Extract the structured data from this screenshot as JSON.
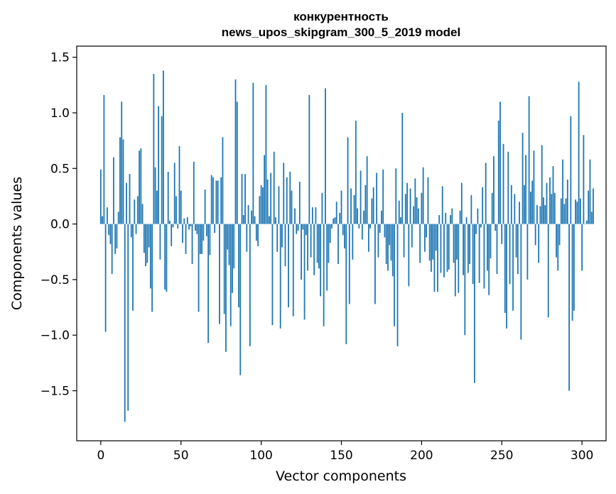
{
  "chart_data": {
    "type": "bar",
    "title_line1": "конкурентность",
    "title_line2": "news_upos_skipgram_300_5_2019 model",
    "xlabel": "Vector components",
    "ylabel": "Components values",
    "xlim": [
      -15,
      315
    ],
    "ylim": [
      -1.95,
      1.6
    ],
    "x_ticks": [
      0,
      50,
      100,
      150,
      200,
      250,
      300
    ],
    "x_tick_labels": [
      "0",
      "50",
      "100",
      "150",
      "200",
      "250",
      "300"
    ],
    "y_ticks": [
      1.5,
      1.0,
      0.5,
      0.0,
      -0.5,
      -1.0,
      -1.5
    ],
    "y_tick_labels": [
      "1.5",
      "1.0",
      "0.5",
      "0.0",
      "−0.5",
      "−1.0",
      "−1.5"
    ],
    "bar_color": "#1f77b4",
    "values": [
      0.49,
      0.07,
      1.16,
      -0.97,
      0.15,
      -0.1,
      -0.18,
      -0.45,
      0.6,
      -0.27,
      -0.22,
      0.11,
      0.78,
      1.1,
      0.76,
      -1.78,
      0.37,
      -1.68,
      0.45,
      -0.12,
      -0.78,
      0.22,
      -0.09,
      0.25,
      0.66,
      0.68,
      0.18,
      -0.26,
      -0.38,
      -0.35,
      -0.21,
      -0.58,
      -0.79,
      1.35,
      0.51,
      0.3,
      1.06,
      -0.32,
      0.97,
      1.38,
      -0.59,
      -0.61,
      0.47,
      0.03,
      -0.2,
      -0.03,
      0.55,
      0.25,
      -0.04,
      0.7,
      0.3,
      -0.17,
      0.05,
      -0.27,
      0.06,
      -0.05,
      -0.02,
      -0.36,
      0.56,
      -0.06,
      -0.09,
      -0.79,
      -0.27,
      -0.27,
      -0.15,
      0.31,
      -0.11,
      -1.07,
      -0.28,
      0.44,
      0.42,
      -0.08,
      0.39,
      0.39,
      -0.9,
      0.42,
      0.78,
      -0.81,
      -1.15,
      -0.23,
      -0.37,
      -0.92,
      -0.62,
      -0.4,
      1.3,
      1.1,
      -0.75,
      -1.36,
      0.45,
      0.08,
      0.45,
      -0.25,
      0.17,
      -1.1,
      0.12,
      1.27,
      0.07,
      -0.15,
      -0.2,
      0.25,
      0.35,
      0.33,
      0.62,
      1.25,
      0.4,
      0.07,
      0.46,
      -0.91,
      0.65,
      0.06,
      -0.25,
      0.34,
      -0.94,
      -0.21,
      0.55,
      -0.38,
      0.42,
      -0.75,
      0.47,
      0.3,
      -0.83,
      0.14,
      -0.09,
      -0.06,
      0.38,
      -0.5,
      -0.05,
      -0.86,
      -0.1,
      -0.42,
      1.16,
      -0.3,
      0.15,
      -0.46,
      0.15,
      -0.35,
      -0.4,
      -0.65,
      0.28,
      -0.92,
      1.22,
      -0.6,
      -0.35,
      -0.17,
      -0.04,
      0.05,
      0.06,
      0.2,
      -0.36,
      0.1,
      0.3,
      -0.1,
      -0.22,
      -1.08,
      0.78,
      -0.72,
      0.32,
      -0.32,
      0.26,
      0.93,
      0.14,
      -0.04,
      0.48,
      -0.14,
      0.12,
      0.35,
      0.61,
      -0.25,
      -0.04,
      0.23,
      0.33,
      -0.72,
      0.46,
      -0.3,
      -0.08,
      0.12,
      0.49,
      -0.12,
      -0.36,
      -0.42,
      -0.19,
      -0.33,
      -0.47,
      -0.92,
      0.5,
      -1.1,
      0.21,
      0.06,
      1.0,
      -0.3,
      0.27,
      0.37,
      -0.56,
      0.32,
      -0.21,
      0.16,
      0.41,
      0.24,
      0.14,
      -0.35,
      0.28,
      0.51,
      -0.25,
      -0.12,
      0.42,
      -0.33,
      -0.43,
      -0.32,
      -0.61,
      -0.24,
      -0.61,
      0.08,
      -0.44,
      0.34,
      -0.48,
      0.1,
      -0.43,
      -0.41,
      0.08,
      0.14,
      -0.35,
      -0.65,
      -0.32,
      -0.62,
      0.12,
      0.37,
      -0.46,
      -1.0,
      0.06,
      -0.44,
      -0.36,
      0.26,
      -0.54,
      -1.43,
      -0.09,
      0.14,
      -0.53,
      -0.03,
      0.33,
      -0.58,
      0.55,
      -0.42,
      -0.64,
      -0.31,
      0.28,
      0.61,
      -0.06,
      -0.45,
      0.93,
      1.1,
      -0.18,
      0.72,
      -0.8,
      -0.94,
      0.65,
      -0.54,
      0.35,
      -0.78,
      0.27,
      -0.3,
      -0.45,
      0.2,
      -1.04,
      0.82,
      0.35,
      0.62,
      -0.5,
      1.15,
      0.29,
      0.39,
      0.66,
      -0.19,
      0.17,
      -0.35,
      0.16,
      0.71,
      0.24,
      0.17,
      0.37,
      -0.84,
      0.42,
      0.27,
      0.52,
      0.28,
      -0.3,
      -0.42,
      -0.19,
      0.23,
      0.58,
      0.18,
      0.23,
      0.4,
      -1.5,
      0.97,
      -0.87,
      -0.78,
      0.22,
      0.2,
      1.28,
      0.23,
      -0.42,
      0.8,
      0.0,
      0.03,
      0.3,
      0.58,
      0.11,
      0.32
    ]
  }
}
